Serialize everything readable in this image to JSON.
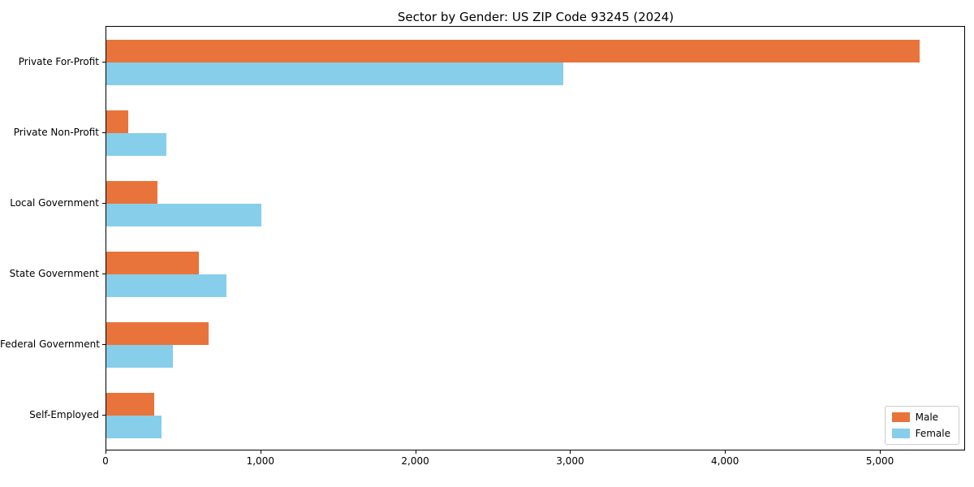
{
  "title": "Sector by Gender: US ZIP Code 93245 (2024)",
  "chart_data": {
    "type": "bar",
    "orientation": "horizontal",
    "title": "Sector by Gender: US ZIP Code 93245 (2024)",
    "categories": [
      "Private For-Profit",
      "Private Non-Profit",
      "Local Government",
      "State Government",
      "Federal Government",
      "Self-Employed"
    ],
    "series": [
      {
        "name": "Male",
        "color": "#e8743b",
        "values": [
          5250,
          140,
          330,
          600,
          660,
          310
        ]
      },
      {
        "name": "Female",
        "color": "#87ceeb",
        "values": [
          2950,
          390,
          1000,
          775,
          430,
          355
        ]
      }
    ],
    "xlabel": "",
    "ylabel": "",
    "xlim": [
      0,
      5550
    ],
    "x_ticks": [
      0,
      1000,
      2000,
      3000,
      4000,
      5000
    ],
    "x_tick_labels": [
      "0",
      "1,000",
      "2,000",
      "3,000",
      "4,000",
      "5,000"
    ],
    "grid": false,
    "legend_position": "lower right"
  },
  "legend": {
    "male_label": "Male",
    "female_label": "Female"
  }
}
